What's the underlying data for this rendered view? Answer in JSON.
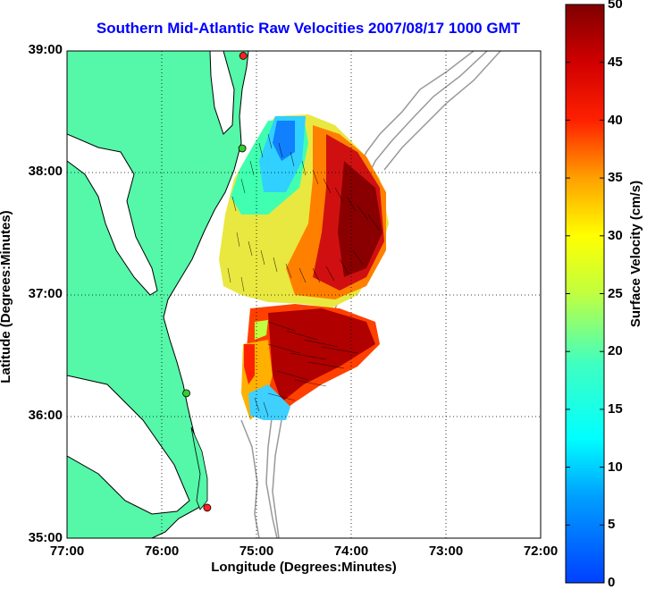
{
  "chart_data": {
    "type": "map",
    "title": "Southern Mid-Atlantic Raw Velocities 2007/08/17 1000 GMT",
    "xlabel": "Longitude (Degrees:Minutes)",
    "ylabel": "Latitude (Degrees:Minutes)",
    "x_ticks": [
      "77:00",
      "76:00",
      "75:00",
      "74:00",
      "73:00",
      "72:00"
    ],
    "y_ticks": [
      "39:00",
      "38:00",
      "37:00",
      "36:00",
      "35:00"
    ],
    "xlim": [
      -77,
      -72
    ],
    "ylim": [
      35,
      39
    ],
    "grid": true,
    "colorbar": {
      "label": "Surface Velocity (cm/s)",
      "range": [
        0,
        50
      ],
      "ticks": [
        "0",
        "5",
        "10",
        "15",
        "20",
        "25",
        "30",
        "35",
        "40",
        "45",
        "50"
      ],
      "colormap": "jet"
    },
    "land_color": "#55f7a8",
    "water_color": "#ffffff",
    "coastline_color": "#000000",
    "bathymetry_color": "#999999",
    "title_color": "#0000ff",
    "radar_sites": [
      {
        "lon": -75.14,
        "lat": 38.96,
        "color": "#ff2020"
      },
      {
        "lon": -75.15,
        "lat": 38.2,
        "color": "#33cc33"
      },
      {
        "lon": -75.74,
        "lat": 36.19,
        "color": "#33cc33"
      },
      {
        "lon": -75.52,
        "lat": 35.25,
        "color": "#ff2020"
      }
    ]
  }
}
